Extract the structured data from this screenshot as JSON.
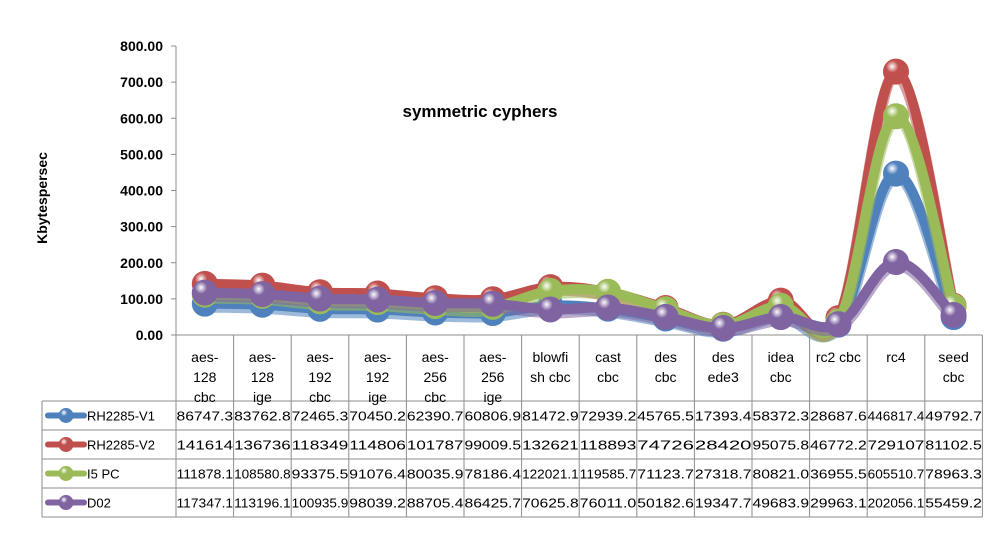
{
  "chart_data": {
    "type": "line",
    "title": "symmetric cyphers",
    "ylabel": "Kbytespersec",
    "xlabel": "",
    "ylim": [
      0,
      800
    ],
    "yticks": [
      "0.00",
      "100.00",
      "200.00",
      "300.00",
      "400.00",
      "500.00",
      "600.00",
      "700.00",
      "800.00"
    ],
    "grid": false,
    "legend": "data-table-left",
    "categories": [
      [
        "aes-",
        "128",
        "cbc"
      ],
      [
        "aes-",
        "128",
        "ige"
      ],
      [
        "aes-",
        "192",
        "cbc"
      ],
      [
        "aes-",
        "192",
        "ige"
      ],
      [
        "aes-",
        "256",
        "cbc"
      ],
      [
        "aes-",
        "256",
        "ige"
      ],
      [
        "blowfi",
        "sh cbc"
      ],
      [
        "cast",
        "cbc"
      ],
      [
        "des",
        "cbc"
      ],
      [
        "des",
        "ede3"
      ],
      [
        "idea",
        "cbc"
      ],
      [
        "rc2 cbc"
      ],
      [
        "rc4"
      ],
      [
        "seed",
        "cbc"
      ]
    ],
    "series": [
      {
        "name": "RH2285-V1",
        "color": "#4f81bd",
        "values": [
          86.75,
          83.76,
          72.47,
          70.45,
          62.39,
          60.81,
          81.47,
          72.94,
          45.77,
          17.39,
          58.37,
          28.69,
          446.82,
          49.79
        ],
        "cells": [
          "86747.3",
          "83762.8",
          "72465.3",
          "70450.2",
          "62390.7",
          "60806.9",
          "81472.9",
          "72939.2",
          "45765.5",
          "17393.4",
          "58372.3",
          "28687.6",
          "446817.4",
          "49792.7"
        ]
      },
      {
        "name": "RH2285-V2",
        "color": "#c0504d",
        "values": [
          141.61,
          136.74,
          118.35,
          114.81,
          101.79,
          99.01,
          132.62,
          118.89,
          74.73,
          28.42,
          95.08,
          46.77,
          729.11,
          81.1
        ],
        "cells": [
          "141614",
          "136736",
          "118349",
          "114806",
          "101787",
          "99009.5",
          "132621",
          "118893",
          "74726",
          "28420",
          "95075.8",
          "46772.2",
          "729107",
          "81102.5"
        ]
      },
      {
        "name": "I5 PC",
        "color": "#9bbb59",
        "values": [
          111.88,
          108.58,
          93.38,
          91.08,
          80.04,
          78.19,
          122.02,
          119.59,
          71.12,
          27.32,
          80.82,
          36.96,
          605.51,
          78.96
        ],
        "cells": [
          "111878.1",
          "108580.8",
          "93375.5",
          "91076.4",
          "80035.9",
          "78186.4",
          "122021.1",
          "119585.7",
          "71123.7",
          "27318.7",
          "80821.0",
          "36955.5",
          "605510.7",
          "78963.3"
        ]
      },
      {
        "name": "D02",
        "color": "#8064a2",
        "values": [
          117.35,
          113.2,
          100.94,
          98.04,
          88.71,
          86.43,
          70.63,
          76.01,
          50.18,
          19.35,
          49.68,
          29.96,
          202.06,
          55.46
        ],
        "cells": [
          "117347.1",
          "113196.1",
          "100935.9",
          "98039.2",
          "88705.4",
          "86425.7",
          "70625.8",
          "76011.0",
          "50182.6",
          "19347.7",
          "49683.9",
          "29963.1",
          "202056.1",
          "55459.2"
        ]
      }
    ]
  }
}
